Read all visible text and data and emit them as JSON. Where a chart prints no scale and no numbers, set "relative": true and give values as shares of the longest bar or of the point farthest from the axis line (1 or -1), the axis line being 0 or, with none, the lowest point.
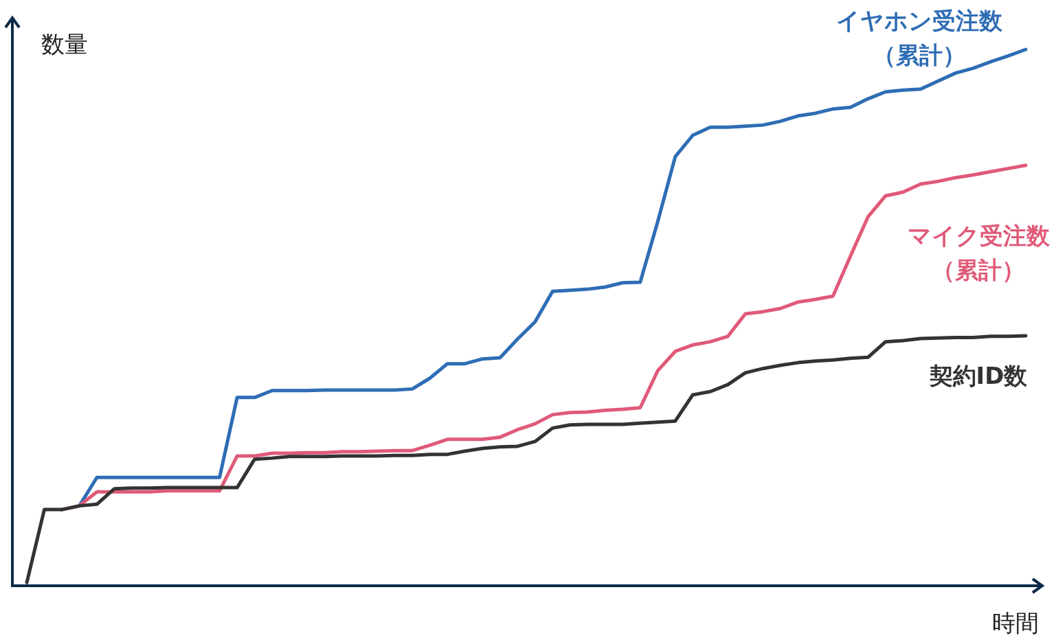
{
  "chart_data": {
    "type": "line",
    "relative": true,
    "xlabel": "時間",
    "ylabel": "数量",
    "categories": [
      null,
      null,
      null,
      null,
      null,
      null,
      null,
      null,
      null,
      null,
      null,
      null,
      null,
      null,
      null,
      null,
      null,
      null,
      null,
      null,
      null,
      null,
      null,
      null,
      null,
      null,
      null,
      null,
      null,
      null,
      null,
      null,
      null,
      null,
      null,
      null,
      null,
      null,
      null,
      null,
      null,
      null,
      null,
      null,
      null,
      null,
      null,
      null,
      null,
      null,
      null,
      null,
      null,
      null,
      null,
      null,
      null,
      null
    ],
    "series": [
      {
        "name": "イヤホン受注数（累計）",
        "color": "#2e6db4",
        "values": [
          null,
          null,
          0.142,
          0.149,
          0.202,
          0.202,
          0.202,
          0.202,
          0.202,
          0.202,
          0.202,
          0.202,
          0.351,
          0.351,
          0.364,
          0.364,
          0.364,
          0.365,
          0.365,
          0.365,
          0.365,
          0.365,
          0.367,
          0.387,
          0.414,
          0.414,
          0.423,
          0.425,
          0.46,
          0.492,
          0.549,
          0.551,
          0.553,
          0.557,
          0.565,
          0.566,
          0.679,
          0.8,
          0.84,
          0.855,
          0.855,
          0.857,
          0.859,
          0.866,
          0.876,
          0.881,
          0.889,
          0.892,
          0.908,
          0.921,
          0.924,
          0.926,
          0.941,
          0.956,
          0.965,
          0.977,
          0.988,
          1
        ]
      },
      {
        "name": "マイク受注数（累計）",
        "color": "#e05a78",
        "values": [
          null,
          null,
          0.142,
          0.149,
          0.175,
          0.175,
          0.175,
          0.175,
          0.177,
          0.177,
          0.177,
          0.177,
          0.242,
          0.242,
          0.247,
          0.247,
          0.248,
          0.248,
          0.25,
          0.25,
          0.251,
          0.252,
          0.252,
          0.262,
          0.273,
          0.273,
          0.273,
          0.277,
          0.291,
          0.302,
          0.319,
          0.323,
          0.324,
          0.327,
          0.329,
          0.332,
          0.401,
          0.437,
          0.449,
          0.455,
          0.465,
          0.507,
          0.511,
          0.517,
          0.529,
          0.534,
          0.54,
          0.615,
          0.688,
          0.727,
          0.734,
          0.749,
          0.754,
          0.761,
          0.766,
          0.772,
          0.778,
          0.784
        ]
      },
      {
        "name": "契約ID数",
        "color": "#333333",
        "values": [
          0.006,
          0.142,
          0.142,
          0.149,
          0.152,
          0.181,
          0.182,
          0.182,
          0.183,
          0.183,
          0.183,
          0.183,
          0.183,
          0.236,
          0.238,
          0.241,
          0.241,
          0.241,
          0.242,
          0.242,
          0.242,
          0.243,
          0.243,
          0.245,
          0.245,
          0.251,
          0.256,
          0.259,
          0.26,
          0.269,
          0.294,
          0.3,
          0.301,
          0.301,
          0.301,
          0.303,
          0.305,
          0.307,
          0.356,
          0.362,
          0.375,
          0.397,
          0.405,
          0.411,
          0.416,
          0.419,
          0.421,
          0.424,
          0.426,
          0.455,
          0.457,
          0.461,
          0.462,
          0.463,
          0.463,
          0.465,
          0.465,
          0.466
        ]
      }
    ]
  }
}
